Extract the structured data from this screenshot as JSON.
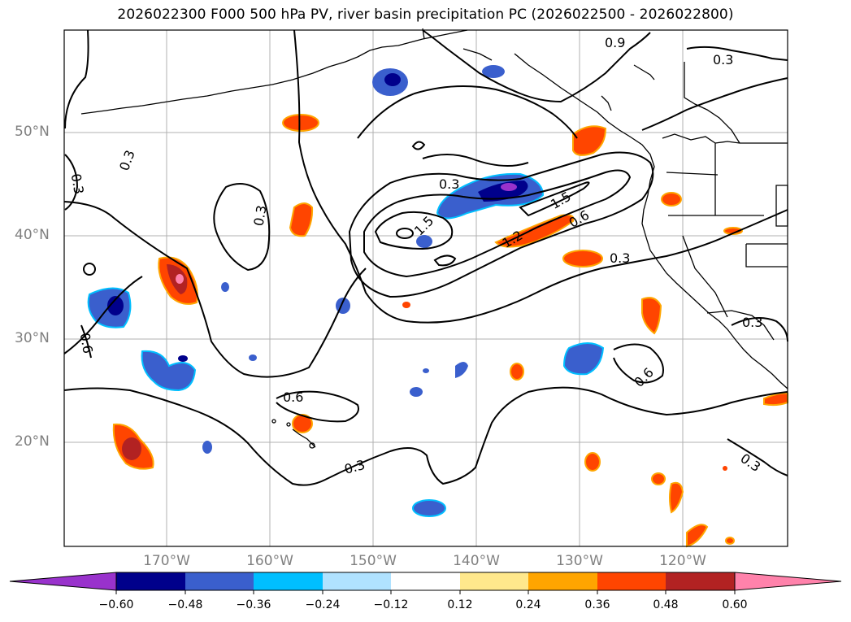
{
  "title": "2026022300 F000 500 hPa PV, river basin precipitation PC (2026022500 - 2026022800)",
  "map": {
    "lat_labels": [
      "50°N",
      "40°N",
      "30°N",
      "20°N"
    ],
    "lon_labels": [
      "170°W",
      "160°W",
      "150°W",
      "140°W",
      "130°W",
      "120°W"
    ],
    "gridline_color": "#b0b0b0",
    "contour_labels": [
      "0.9",
      "0.3",
      "0.3",
      "0.3",
      "0.3",
      "0.3",
      "1.5",
      "1.5",
      "0.6",
      "1.2",
      "0.3",
      "0.6",
      "0.3",
      "0.6",
      "0.6",
      "0.3",
      "0.3"
    ]
  },
  "colorbar": {
    "tick_labels": [
      "−0.60",
      "−0.48",
      "−0.36",
      "−0.24",
      "−0.12",
      "0.12",
      "0.24",
      "0.36",
      "0.48",
      "0.60"
    ],
    "colors": [
      "#9932cc",
      "#00008b",
      "#3a5fcd",
      "#00bfff",
      "#b0e2ff",
      "#ffffff",
      "#ffe88c",
      "#ffa500",
      "#ff4500",
      "#b22222",
      "#ff82ab"
    ]
  }
}
